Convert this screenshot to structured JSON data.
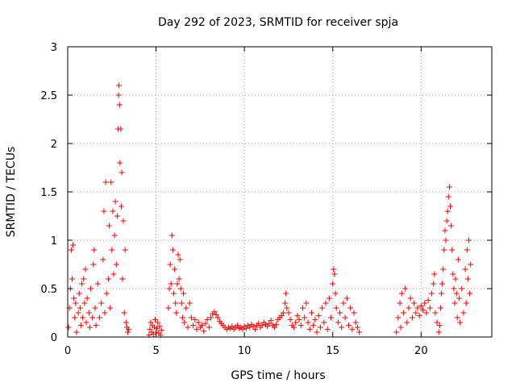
{
  "chart_data": {
    "type": "scatter",
    "title": "Day 292 of 2023, SRMTID for receiver spja",
    "xlabel": "GPS time / hours",
    "ylabel": "SRMTID / TECUs",
    "xlim": [
      0,
      24
    ],
    "ylim": [
      0,
      3
    ],
    "xticks": [
      0,
      5,
      10,
      15,
      20
    ],
    "xtick_labels": [
      "0",
      "5",
      "10",
      "15",
      "20"
    ],
    "yticks": [
      0,
      0.5,
      1,
      1.5,
      2,
      2.5,
      3
    ],
    "ytick_labels": [
      "0",
      "0.5",
      "1",
      "1.5",
      "2",
      "2.5",
      "3"
    ],
    "grid": true,
    "marker": "+",
    "color": "#ff0000",
    "series": [
      {
        "name": "SRMTID",
        "points": [
          [
            0.05,
            0.1
          ],
          [
            0.1,
            0.3
          ],
          [
            0.15,
            0.5
          ],
          [
            0.2,
            0.9
          ],
          [
            0.25,
            0.6
          ],
          [
            0.3,
            0.95
          ],
          [
            0.35,
            0.4
          ],
          [
            0.4,
            0.2
          ],
          [
            0.45,
            0.35
          ],
          [
            0.5,
            0.05
          ],
          [
            0.6,
            0.25
          ],
          [
            0.65,
            0.45
          ],
          [
            0.7,
            0.3
          ],
          [
            0.75,
            0.12
          ],
          [
            0.8,
            0.55
          ],
          [
            0.85,
            0.2
          ],
          [
            0.9,
            0.6
          ],
          [
            0.95,
            0.35
          ],
          [
            1.0,
            0.7
          ],
          [
            1.05,
            0.15
          ],
          [
            1.1,
            0.4
          ],
          [
            1.2,
            0.25
          ],
          [
            1.25,
            0.1
          ],
          [
            1.3,
            0.5
          ],
          [
            1.4,
            0.2
          ],
          [
            1.45,
            0.75
          ],
          [
            1.5,
            0.9
          ],
          [
            1.55,
            0.3
          ],
          [
            1.6,
            0.12
          ],
          [
            1.7,
            0.55
          ],
          [
            1.8,
            0.2
          ],
          [
            1.9,
            0.35
          ],
          [
            2.0,
            0.8
          ],
          [
            2.05,
            1.3
          ],
          [
            2.1,
            0.25
          ],
          [
            2.15,
            1.6
          ],
          [
            2.2,
            0.45
          ],
          [
            2.3,
            0.6
          ],
          [
            2.35,
            1.15
          ],
          [
            2.4,
            0.3
          ],
          [
            2.45,
            1.6
          ],
          [
            2.5,
            0.9
          ],
          [
            2.55,
            1.3
          ],
          [
            2.6,
            0.65
          ],
          [
            2.65,
            1.05
          ],
          [
            2.7,
            1.4
          ],
          [
            2.75,
            0.75
          ],
          [
            2.8,
            1.25
          ],
          [
            2.85,
            2.15
          ],
          [
            2.88,
            2.5
          ],
          [
            2.9,
            2.6
          ],
          [
            2.93,
            2.4
          ],
          [
            2.96,
            1.8
          ],
          [
            3.0,
            2.15
          ],
          [
            3.03,
            1.35
          ],
          [
            3.06,
            1.7
          ],
          [
            3.1,
            0.6
          ],
          [
            3.15,
            1.2
          ],
          [
            3.2,
            0.25
          ],
          [
            3.25,
            0.9
          ],
          [
            3.3,
            0.15
          ],
          [
            3.35,
            0.1
          ],
          [
            3.4,
            0.05
          ],
          [
            3.45,
            0.08
          ],
          [
            4.6,
            0.02
          ],
          [
            4.65,
            0.08
          ],
          [
            4.7,
            0.15
          ],
          [
            4.75,
            0.05
          ],
          [
            4.8,
            0.12
          ],
          [
            4.85,
            0.03
          ],
          [
            4.9,
            0.1
          ],
          [
            4.95,
            0.18
          ],
          [
            5.0,
            0.05
          ],
          [
            5.05,
            0.09
          ],
          [
            5.1,
            0.15
          ],
          [
            5.15,
            0.04
          ],
          [
            5.2,
            0.11
          ],
          [
            5.25,
            0.02
          ],
          [
            5.3,
            0.07
          ],
          [
            5.7,
            0.3
          ],
          [
            5.75,
            0.5
          ],
          [
            5.8,
            0.75
          ],
          [
            5.85,
            0.55
          ],
          [
            5.9,
            1.05
          ],
          [
            5.95,
            0.9
          ],
          [
            6.0,
            0.45
          ],
          [
            6.05,
            0.7
          ],
          [
            6.1,
            0.35
          ],
          [
            6.15,
            0.25
          ],
          [
            6.2,
            0.55
          ],
          [
            6.25,
            0.85
          ],
          [
            6.3,
            0.6
          ],
          [
            6.35,
            0.8
          ],
          [
            6.4,
            0.5
          ],
          [
            6.45,
            0.35
          ],
          [
            6.5,
            0.2
          ],
          [
            6.55,
            0.45
          ],
          [
            6.6,
            0.15
          ],
          [
            6.7,
            0.3
          ],
          [
            6.8,
            0.1
          ],
          [
            6.9,
            0.35
          ],
          [
            7.0,
            0.2
          ],
          [
            7.1,
            0.12
          ],
          [
            7.2,
            0.18
          ],
          [
            7.3,
            0.08
          ],
          [
            7.4,
            0.15
          ],
          [
            7.5,
            0.1
          ],
          [
            7.6,
            0.12
          ],
          [
            7.7,
            0.06
          ],
          [
            7.8,
            0.14
          ],
          [
            7.9,
            0.18
          ],
          [
            8.0,
            0.1
          ],
          [
            8.1,
            0.2
          ],
          [
            8.2,
            0.24
          ],
          [
            8.3,
            0.26
          ],
          [
            8.4,
            0.23
          ],
          [
            8.5,
            0.2
          ],
          [
            8.6,
            0.16
          ],
          [
            8.7,
            0.14
          ],
          [
            8.8,
            0.12
          ],
          [
            8.9,
            0.1
          ],
          [
            9.0,
            0.08
          ],
          [
            9.1,
            0.1
          ],
          [
            9.2,
            0.09
          ],
          [
            9.3,
            0.11
          ],
          [
            9.4,
            0.08
          ],
          [
            9.5,
            0.1
          ],
          [
            9.6,
            0.12
          ],
          [
            9.7,
            0.09
          ],
          [
            9.8,
            0.1
          ],
          [
            9.9,
            0.08
          ],
          [
            10.0,
            0.11
          ],
          [
            10.1,
            0.09
          ],
          [
            10.2,
            0.12
          ],
          [
            10.3,
            0.1
          ],
          [
            10.4,
            0.13
          ],
          [
            10.5,
            0.11
          ],
          [
            10.6,
            0.08
          ],
          [
            10.7,
            0.12
          ],
          [
            10.8,
            0.14
          ],
          [
            10.9,
            0.1
          ],
          [
            11.0,
            0.12
          ],
          [
            11.1,
            0.15
          ],
          [
            11.2,
            0.13
          ],
          [
            11.3,
            0.11
          ],
          [
            11.4,
            0.14
          ],
          [
            11.5,
            0.17
          ],
          [
            11.6,
            0.12
          ],
          [
            11.7,
            0.1
          ],
          [
            11.8,
            0.13
          ],
          [
            11.9,
            0.18
          ],
          [
            12.0,
            0.2
          ],
          [
            12.1,
            0.22
          ],
          [
            12.2,
            0.25
          ],
          [
            12.3,
            0.35
          ],
          [
            12.35,
            0.45
          ],
          [
            12.4,
            0.3
          ],
          [
            12.5,
            0.25
          ],
          [
            12.6,
            0.18
          ],
          [
            12.7,
            0.12
          ],
          [
            12.8,
            0.1
          ],
          [
            12.9,
            0.15
          ],
          [
            13.0,
            0.22
          ],
          [
            13.1,
            0.18
          ],
          [
            13.2,
            0.12
          ],
          [
            13.3,
            0.3
          ],
          [
            13.4,
            0.2
          ],
          [
            13.5,
            0.35
          ],
          [
            13.6,
            0.15
          ],
          [
            13.7,
            0.08
          ],
          [
            13.8,
            0.25
          ],
          [
            13.9,
            0.12
          ],
          [
            14.0,
            0.18
          ],
          [
            14.1,
            0.05
          ],
          [
            14.2,
            0.22
          ],
          [
            14.3,
            0.1
          ],
          [
            14.4,
            0.3
          ],
          [
            14.5,
            0.15
          ],
          [
            14.6,
            0.35
          ],
          [
            14.7,
            0.08
          ],
          [
            14.8,
            0.4
          ],
          [
            14.9,
            0.2
          ],
          [
            15.0,
            0.55
          ],
          [
            15.05,
            0.7
          ],
          [
            15.1,
            0.65
          ],
          [
            15.15,
            0.45
          ],
          [
            15.2,
            0.3
          ],
          [
            15.3,
            0.15
          ],
          [
            15.4,
            0.25
          ],
          [
            15.5,
            0.1
          ],
          [
            15.6,
            0.35
          ],
          [
            15.7,
            0.2
          ],
          [
            15.8,
            0.4
          ],
          [
            15.9,
            0.12
          ],
          [
            16.0,
            0.3
          ],
          [
            16.1,
            0.08
          ],
          [
            16.2,
            0.25
          ],
          [
            16.3,
            0.15
          ],
          [
            16.4,
            0.1
          ],
          [
            16.5,
            0.05
          ],
          [
            18.6,
            0.05
          ],
          [
            18.7,
            0.2
          ],
          [
            18.8,
            0.35
          ],
          [
            18.85,
            0.1
          ],
          [
            18.9,
            0.45
          ],
          [
            19.0,
            0.25
          ],
          [
            19.1,
            0.5
          ],
          [
            19.2,
            0.15
          ],
          [
            19.3,
            0.3
          ],
          [
            19.4,
            0.4
          ],
          [
            19.5,
            0.2
          ],
          [
            19.6,
            0.35
          ],
          [
            19.7,
            0.25
          ],
          [
            19.8,
            0.3
          ],
          [
            19.9,
            0.22
          ],
          [
            20.0,
            0.32
          ],
          [
            20.1,
            0.28
          ],
          [
            20.2,
            0.35
          ],
          [
            20.3,
            0.25
          ],
          [
            20.4,
            0.38
          ],
          [
            20.5,
            0.3
          ],
          [
            20.6,
            0.45
          ],
          [
            20.7,
            0.55
          ],
          [
            20.75,
            0.65
          ],
          [
            20.8,
            0.25
          ],
          [
            20.9,
            0.15
          ],
          [
            21.0,
            0.05
          ],
          [
            21.05,
            0.12
          ],
          [
            21.1,
            0.3
          ],
          [
            21.15,
            0.45
          ],
          [
            21.2,
            0.55
          ],
          [
            21.25,
            0.7
          ],
          [
            21.3,
            0.9
          ],
          [
            21.35,
            1.1
          ],
          [
            21.4,
            1.0
          ],
          [
            21.45,
            1.2
          ],
          [
            21.5,
            1.3
          ],
          [
            21.55,
            1.45
          ],
          [
            21.6,
            1.55
          ],
          [
            21.65,
            1.35
          ],
          [
            21.7,
            1.15
          ],
          [
            21.75,
            0.9
          ],
          [
            21.8,
            0.65
          ],
          [
            21.85,
            0.5
          ],
          [
            21.9,
            0.35
          ],
          [
            21.95,
            0.6
          ],
          [
            22.0,
            0.45
          ],
          [
            22.05,
            0.2
          ],
          [
            22.1,
            0.8
          ],
          [
            22.15,
            0.4
          ],
          [
            22.2,
            0.15
          ],
          [
            22.3,
            0.5
          ],
          [
            22.4,
            0.25
          ],
          [
            22.5,
            0.7
          ],
          [
            22.55,
            0.35
          ],
          [
            22.6,
            0.9
          ],
          [
            22.65,
            0.6
          ],
          [
            22.7,
            1.0
          ],
          [
            22.75,
            0.45
          ],
          [
            22.8,
            0.75
          ]
        ]
      }
    ]
  }
}
